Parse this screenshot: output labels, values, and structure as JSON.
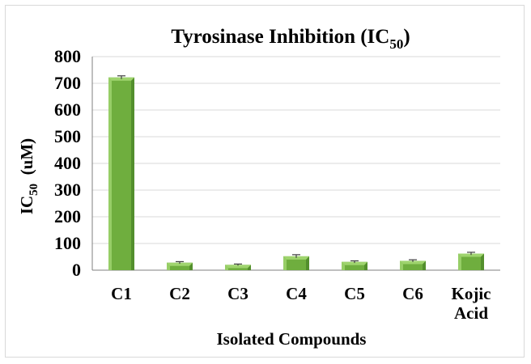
{
  "chart_data": {
    "type": "bar",
    "title": {
      "main": "Tyrosinase Inhibition (IC",
      "sub": "50",
      "end": ")"
    },
    "categories": [
      [
        "C1"
      ],
      [
        "C2"
      ],
      [
        "C3"
      ],
      [
        "C4"
      ],
      [
        "C5"
      ],
      [
        "C6"
      ],
      [
        "Kojic",
        "Acid"
      ]
    ],
    "values": [
      722,
      28,
      20,
      52,
      31,
      35,
      62
    ],
    "errors": [
      6,
      4,
      3,
      6,
      4,
      4,
      5
    ],
    "ylim": [
      0,
      800
    ],
    "yticks": [
      0,
      100,
      200,
      300,
      400,
      500,
      600,
      700,
      800
    ],
    "xlabel": "Isolated Compounds",
    "ylabel": {
      "main": "IC",
      "sub": "50",
      "end": "  (uM)"
    },
    "grid": true,
    "legend": false,
    "colors": {
      "bar_front": "#6fae3e",
      "bar_light": "#9fd46e",
      "bar_dark": "#4f8a2a",
      "grid": "#d9d9d9",
      "axis": "#7f7f7f",
      "error": "#404040"
    }
  }
}
